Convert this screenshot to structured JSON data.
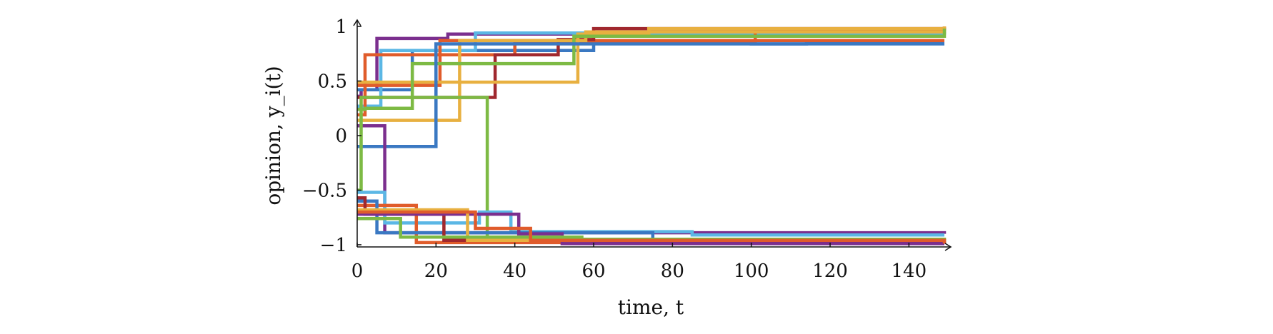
{
  "chart_data": {
    "type": "line",
    "title": "",
    "xlabel": "time, t",
    "ylabel": "opinion, y_i(t)",
    "xlim": [
      0,
      149
    ],
    "ylim": [
      -1.02,
      1.02
    ],
    "xticks": [
      0,
      20,
      40,
      60,
      80,
      100,
      120,
      140
    ],
    "yticks": [
      -1,
      -0.5,
      0,
      0.5,
      1
    ],
    "ytick_labels": [
      "−1",
      "−0.5",
      "0",
      "0.5",
      "1"
    ],
    "grid": false,
    "legend": "none",
    "series": [
      {
        "color": "#7b2f8e",
        "x": [
          0,
          1,
          5,
          23,
          149
        ],
        "y": [
          0.36,
          0.42,
          0.89,
          0.93,
          0.93
        ]
      },
      {
        "color": "#3a78c2",
        "x": [
          0,
          14,
          60,
          100,
          114,
          149
        ],
        "y": [
          0.42,
          0.78,
          0.85,
          0.84,
          0.85,
          0.85
        ]
      },
      {
        "color": "#5bb7e5",
        "x": [
          0,
          6,
          30,
          149
        ],
        "y": [
          0.27,
          0.78,
          0.94,
          0.95
        ]
      },
      {
        "color": "#e05c2b",
        "x": [
          0,
          2,
          40,
          101,
          149
        ],
        "y": [
          0.19,
          0.74,
          0.86,
          0.97,
          1.0
        ]
      },
      {
        "color": "#e05c2b",
        "x": [
          0,
          21,
          149
        ],
        "y": [
          0.46,
          0.87,
          0.87
        ]
      },
      {
        "color": "#a0282e",
        "x": [
          0,
          35,
          51,
          60,
          149
        ],
        "y": [
          0.35,
          0.74,
          0.88,
          0.98,
          0.99
        ]
      },
      {
        "color": "#e8b040",
        "x": [
          0,
          56,
          74,
          149
        ],
        "y": [
          0.49,
          0.93,
          0.98,
          1.0
        ]
      },
      {
        "color": "#e8b040",
        "x": [
          0,
          26,
          58,
          149
        ],
        "y": [
          0.14,
          0.87,
          0.95,
          0.97
        ]
      },
      {
        "color": "#7dba44",
        "x": [
          0,
          2,
          14,
          55,
          149
        ],
        "y": [
          0.24,
          0.25,
          0.66,
          0.91,
          0.98
        ]
      },
      {
        "color": "#3a78c2",
        "x": [
          0,
          20,
          149
        ],
        "y": [
          -0.1,
          0.84,
          0.84
        ]
      },
      {
        "color": "#7b2f8e",
        "x": [
          0,
          7,
          149
        ],
        "y": [
          0.09,
          -0.89,
          -0.9
        ]
      },
      {
        "color": "#7dba44",
        "x": [
          0,
          1,
          33,
          60,
          149
        ],
        "y": [
          -0.5,
          0.35,
          -0.95,
          -0.96,
          -0.97
        ]
      },
      {
        "color": "#5bb7e5",
        "x": [
          0,
          7,
          31,
          39,
          85,
          149
        ],
        "y": [
          -0.52,
          -0.8,
          -0.7,
          -0.88,
          -0.91,
          -0.91
        ]
      },
      {
        "color": "#e05c2b",
        "x": [
          0,
          15,
          149
        ],
        "y": [
          -0.64,
          -0.98,
          -0.98
        ]
      },
      {
        "color": "#3a78c2",
        "x": [
          0,
          5,
          75,
          149
        ],
        "y": [
          -0.6,
          -0.89,
          -0.98,
          -0.98
        ]
      },
      {
        "color": "#a0282e",
        "x": [
          0,
          2,
          22,
          60,
          149
        ],
        "y": [
          -0.57,
          -0.72,
          -0.96,
          -0.98,
          -0.99
        ]
      },
      {
        "color": "#7b2f8e",
        "x": [
          0,
          41,
          52,
          149
        ],
        "y": [
          -0.72,
          -0.9,
          -0.99,
          -0.99
        ]
      },
      {
        "color": "#e8b040",
        "x": [
          0,
          28,
          149
        ],
        "y": [
          -0.68,
          -0.96,
          -0.97
        ]
      },
      {
        "color": "#7dba44",
        "x": [
          0,
          11,
          57,
          149
        ],
        "y": [
          -0.76,
          -0.93,
          -0.95,
          -0.98
        ]
      },
      {
        "color": "#e05c2b",
        "x": [
          0,
          30,
          44,
          149
        ],
        "y": [
          -0.7,
          -0.85,
          -0.96,
          -0.99
        ]
      }
    ]
  }
}
